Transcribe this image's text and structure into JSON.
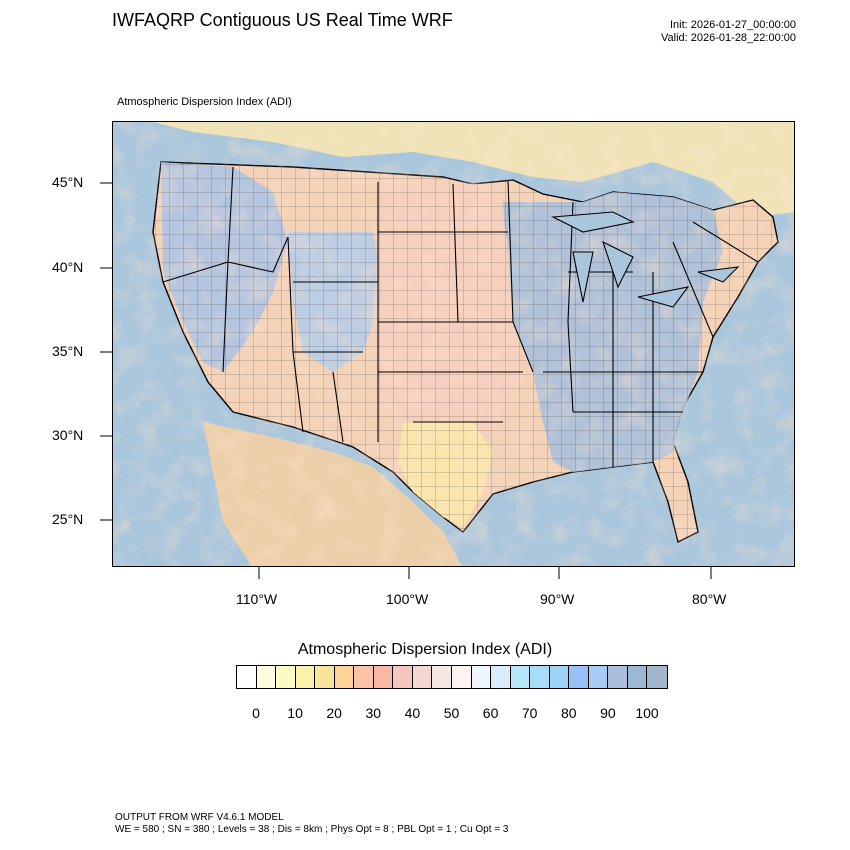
{
  "header": {
    "title": "IWFAQRP Contiguous US Real Time WRF",
    "init": "Init: 2026-01-27_00:00:00",
    "valid": "Valid: 2026-01-28_22:00:00"
  },
  "map": {
    "field_label": "Atmospheric Dispersion Index   (ADI)",
    "lat_labels": [
      "45°N",
      "40°N",
      "35°N",
      "30°N",
      "25°N"
    ],
    "lon_labels": [
      "110°W",
      "100°W",
      "90°W",
      "80°W"
    ],
    "colors": {
      "ocean": "#a9c6dd",
      "land_low": "#fbe8b0",
      "land_mid": "#f3c9b8",
      "land_high": "#bcd3ea",
      "outline": "#000000"
    }
  },
  "colorbar": {
    "title": "Atmospheric Dispersion Index  (ADI)",
    "colors": [
      "#ffffff",
      "#fffbe1",
      "#fdfbc4",
      "#fbf2a9",
      "#fce39a",
      "#fcd398",
      "#fcc4a6",
      "#f9b7a6",
      "#f6c6bd",
      "#f5d7d0",
      "#f7e7e2",
      "#fdf3f2",
      "#f0f6fd",
      "#d8ecfb",
      "#b8e6fb",
      "#a9dcf7",
      "#a0d4f7",
      "#9ac1f7",
      "#a8cbf5",
      "#a9bfdc",
      "#9fb7d6",
      "#a1b5cf"
    ],
    "tick_labels": [
      "0",
      "10",
      "20",
      "30",
      "40",
      "50",
      "60",
      "70",
      "80",
      "90",
      "100"
    ]
  },
  "footer": {
    "line1": "OUTPUT FROM WRF V4.6.1 MODEL",
    "line2": "WE = 580 ; SN = 380 ; Levels = 38 ; Dis = 8km ; Phys Opt = 8 ; PBL Opt = 1 ; Cu Opt = 3"
  }
}
